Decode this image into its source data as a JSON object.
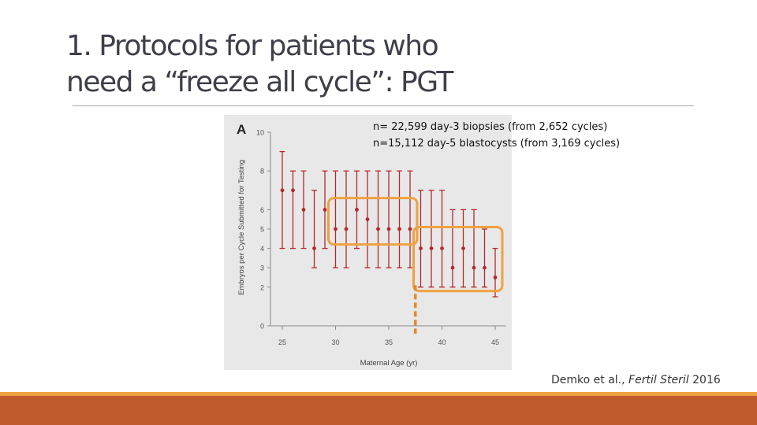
{
  "slide": {
    "title_line1": "1. Protocols for patients who",
    "title_line2": "need a “freeze all cycle”: PGT",
    "note_line1": "n= 22,599 day-3 biopsies (from 2,652 cycles)",
    "note_line2": "n=15,112 day-5 blastocysts (from 3,169 cycles)",
    "citation_authors": "Demko et al., ",
    "citation_journal": "Fertil Steril",
    "citation_year": " 2016"
  },
  "colors": {
    "series": "#b22a2f",
    "highlight_box": "#f0a140",
    "accent_band": "#bf5a2c",
    "panel_bg": "#e8e8e8"
  },
  "chart_data": {
    "type": "scatter",
    "panel_label": "A",
    "xlabel": "Maternal Age (yr)",
    "ylabel": "Embryos per Cycle Submitted for Testing",
    "x_ticks": [
      25,
      30,
      35,
      40,
      45
    ],
    "y_ticks": [
      0,
      2,
      3,
      4,
      5,
      6,
      8,
      10
    ],
    "xlim": [
      24,
      46
    ],
    "ylim": [
      0,
      10
    ],
    "series": [
      {
        "x": [
          25,
          26,
          27,
          28,
          29,
          30,
          31,
          32,
          33,
          34,
          35,
          36,
          37,
          38,
          39,
          40,
          41,
          42,
          43,
          44,
          45
        ],
        "y": [
          7,
          7,
          6,
          4,
          6,
          5,
          5,
          6,
          5.5,
          5,
          5,
          5,
          5,
          4,
          4,
          4,
          3,
          4,
          3,
          3,
          2.5
        ],
        "lower": [
          4,
          4,
          4,
          3,
          4,
          3,
          3,
          4,
          3,
          3,
          3,
          3,
          3,
          2,
          2,
          2,
          2,
          2,
          2,
          2,
          1.5
        ],
        "upper": [
          9,
          8,
          8,
          7,
          8,
          8,
          8,
          8,
          8,
          8,
          8,
          8,
          8,
          7,
          7,
          7,
          6,
          6,
          6,
          5,
          4
        ]
      }
    ],
    "highlight_groups": [
      {
        "x_range": [
          30,
          37
        ],
        "y_range": [
          4.2,
          6.6
        ]
      },
      {
        "x_range": [
          38,
          45
        ],
        "y_range": [
          1.8,
          5.1
        ]
      }
    ],
    "cutoff_marker_x": 37.5,
    "grid": false,
    "legend": "none"
  }
}
